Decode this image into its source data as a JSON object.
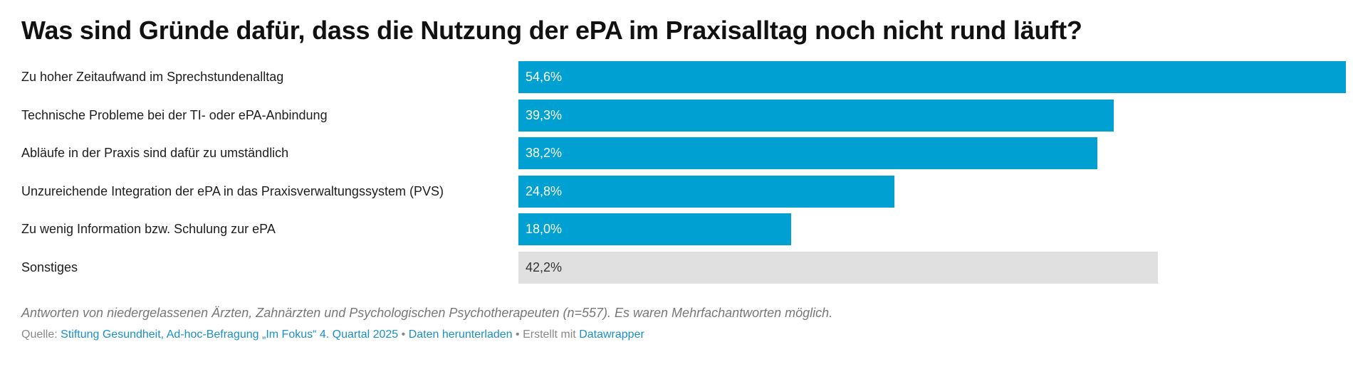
{
  "chart_data": {
    "type": "bar",
    "orientation": "horizontal",
    "title": "Was sind Gründe dafür, dass die Nutzung der ePA im Praxisalltag noch nicht rund läuft?",
    "categories": [
      "Zu hoher Zeitaufwand im Sprechstundenalltag",
      "Technische Probleme bei der TI- oder ePA-Anbindung",
      "Abläufe in der Praxis sind dafür zu umständlich",
      "Unzureichende Integration der ePA in das Praxisverwaltungssystem (PVS)",
      "Zu wenig Information bzw. Schulung zur ePA",
      "Sonstiges"
    ],
    "values": [
      54.6,
      39.3,
      38.2,
      24.8,
      18.0,
      42.2
    ],
    "value_labels": [
      "54,6%",
      "39,3%",
      "38,2%",
      "24,8%",
      "18,0%",
      "42,2%"
    ],
    "highlighted": [
      true,
      true,
      true,
      true,
      true,
      false
    ],
    "xlim": [
      0,
      54.6
    ],
    "unit": "%",
    "grid": false,
    "legend": "none",
    "colors": {
      "bar": "#00a1d2",
      "bar_other": "#e0e0e0",
      "label_on_bar": "#ffffff",
      "label_on_other": "#333333"
    }
  },
  "footer": {
    "note": "Antworten von niedergelassenen Ärzten, Zahnärzten und Psychologischen Psychotherapeuten (n=557). Es waren Mehrfachantworten möglich.",
    "source_prefix": "Quelle: ",
    "source_link": "Stiftung Gesundheit, Ad-hoc-Befragung „Im Fokus“ 4. Quartal 2025",
    "separator": " • ",
    "download_link": "Daten herunterladen",
    "created_with": "Erstellt mit ",
    "tool_link": "Datawrapper",
    "link_color": "#1a8fc7"
  }
}
